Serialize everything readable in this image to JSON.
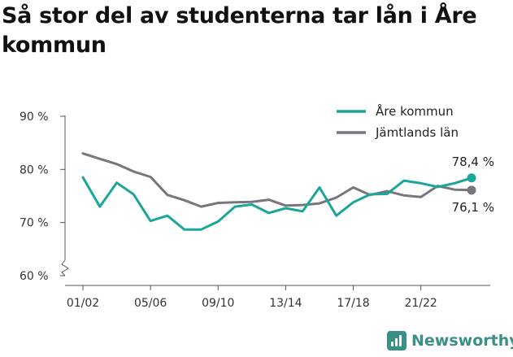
{
  "title": "Så stor del av studenterna tar lån i Åre kommun",
  "brand": {
    "name": "Newsworthy",
    "icon": "bar-chart-speech-bubble-icon",
    "color": "#3a8f86"
  },
  "chart_data": {
    "type": "line",
    "title": "Så stor del av studenterna tar lån i Åre kommun",
    "xlabel": "",
    "ylabel": "",
    "ylim": [
      60,
      90
    ],
    "yticks": [
      "90 %",
      "80 %",
      "70 %",
      "60 %"
    ],
    "xticks": [
      "01/02",
      "05/06",
      "09/10",
      "13/14",
      "17/18",
      "21/22"
    ],
    "x": [
      "01/02",
      "02/03",
      "03/04",
      "04/05",
      "05/06",
      "06/07",
      "07/08",
      "08/09",
      "09/10",
      "10/11",
      "11/12",
      "12/13",
      "13/14",
      "14/15",
      "15/16",
      "16/17",
      "17/18",
      "18/19",
      "19/20",
      "20/21",
      "21/22",
      "22/23",
      "23/24",
      "24/25"
    ],
    "legend_position": "top-right",
    "grid": false,
    "series": [
      {
        "name": "Åre kommun",
        "color": "#1aa699",
        "values": [
          78.5,
          73.0,
          77.5,
          75.3,
          70.3,
          71.3,
          68.7,
          68.7,
          70.2,
          73.0,
          73.4,
          71.8,
          72.7,
          72.1,
          76.6,
          71.3,
          73.8,
          75.3,
          75.4,
          77.9,
          77.4,
          76.7,
          77.4,
          78.4
        ],
        "end_label": "78,4 %"
      },
      {
        "name": "Jämtlands län",
        "color": "#77767c",
        "values": [
          83.0,
          82.0,
          81.0,
          79.6,
          78.6,
          75.2,
          74.2,
          73.0,
          73.7,
          73.8,
          73.9,
          74.3,
          73.2,
          73.3,
          73.6,
          74.7,
          76.6,
          75.2,
          75.9,
          75.1,
          74.8,
          76.9,
          76.2,
          76.1
        ],
        "end_label": "76,1 %"
      }
    ]
  }
}
